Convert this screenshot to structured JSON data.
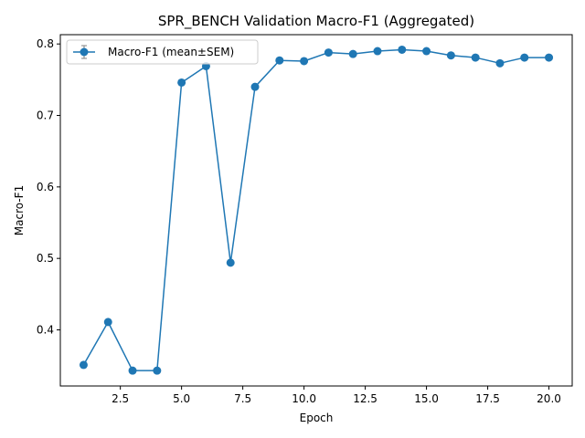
{
  "chart_data": {
    "type": "line",
    "title": "SPR_BENCH Validation Macro-F1 (Aggregated)",
    "xlabel": "Epoch",
    "ylabel": "Macro-F1",
    "xlim": [
      0.05,
      20.95
    ],
    "ylim": [
      0.3215,
      0.813
    ],
    "xticks": [
      2.5,
      5.0,
      7.5,
      10.0,
      12.5,
      15.0,
      17.5,
      20.0
    ],
    "xtick_labels": [
      "2.5",
      "5.0",
      "7.5",
      "10.0",
      "12.5",
      "15.0",
      "17.5",
      "20.0"
    ],
    "yticks": [
      0.4,
      0.5,
      0.6,
      0.7,
      0.8
    ],
    "ytick_labels": [
      "0.4",
      "0.5",
      "0.6",
      "0.7",
      "0.8"
    ],
    "grid": false,
    "legend_position": "top-left",
    "series": [
      {
        "name": "Macro-F1 (mean±SEM)",
        "color": "#1f77b4",
        "marker": "circle",
        "x": [
          1,
          2,
          3,
          4,
          5,
          6,
          7,
          8,
          9,
          10,
          11,
          12,
          13,
          14,
          15,
          16,
          17,
          18,
          19,
          20
        ],
        "y": [
          0.351,
          0.411,
          0.343,
          0.343,
          0.746,
          0.769,
          0.494,
          0.74,
          0.777,
          0.776,
          0.788,
          0.786,
          0.79,
          0.792,
          0.79,
          0.784,
          0.781,
          0.773,
          0.781,
          0.781
        ]
      }
    ]
  }
}
